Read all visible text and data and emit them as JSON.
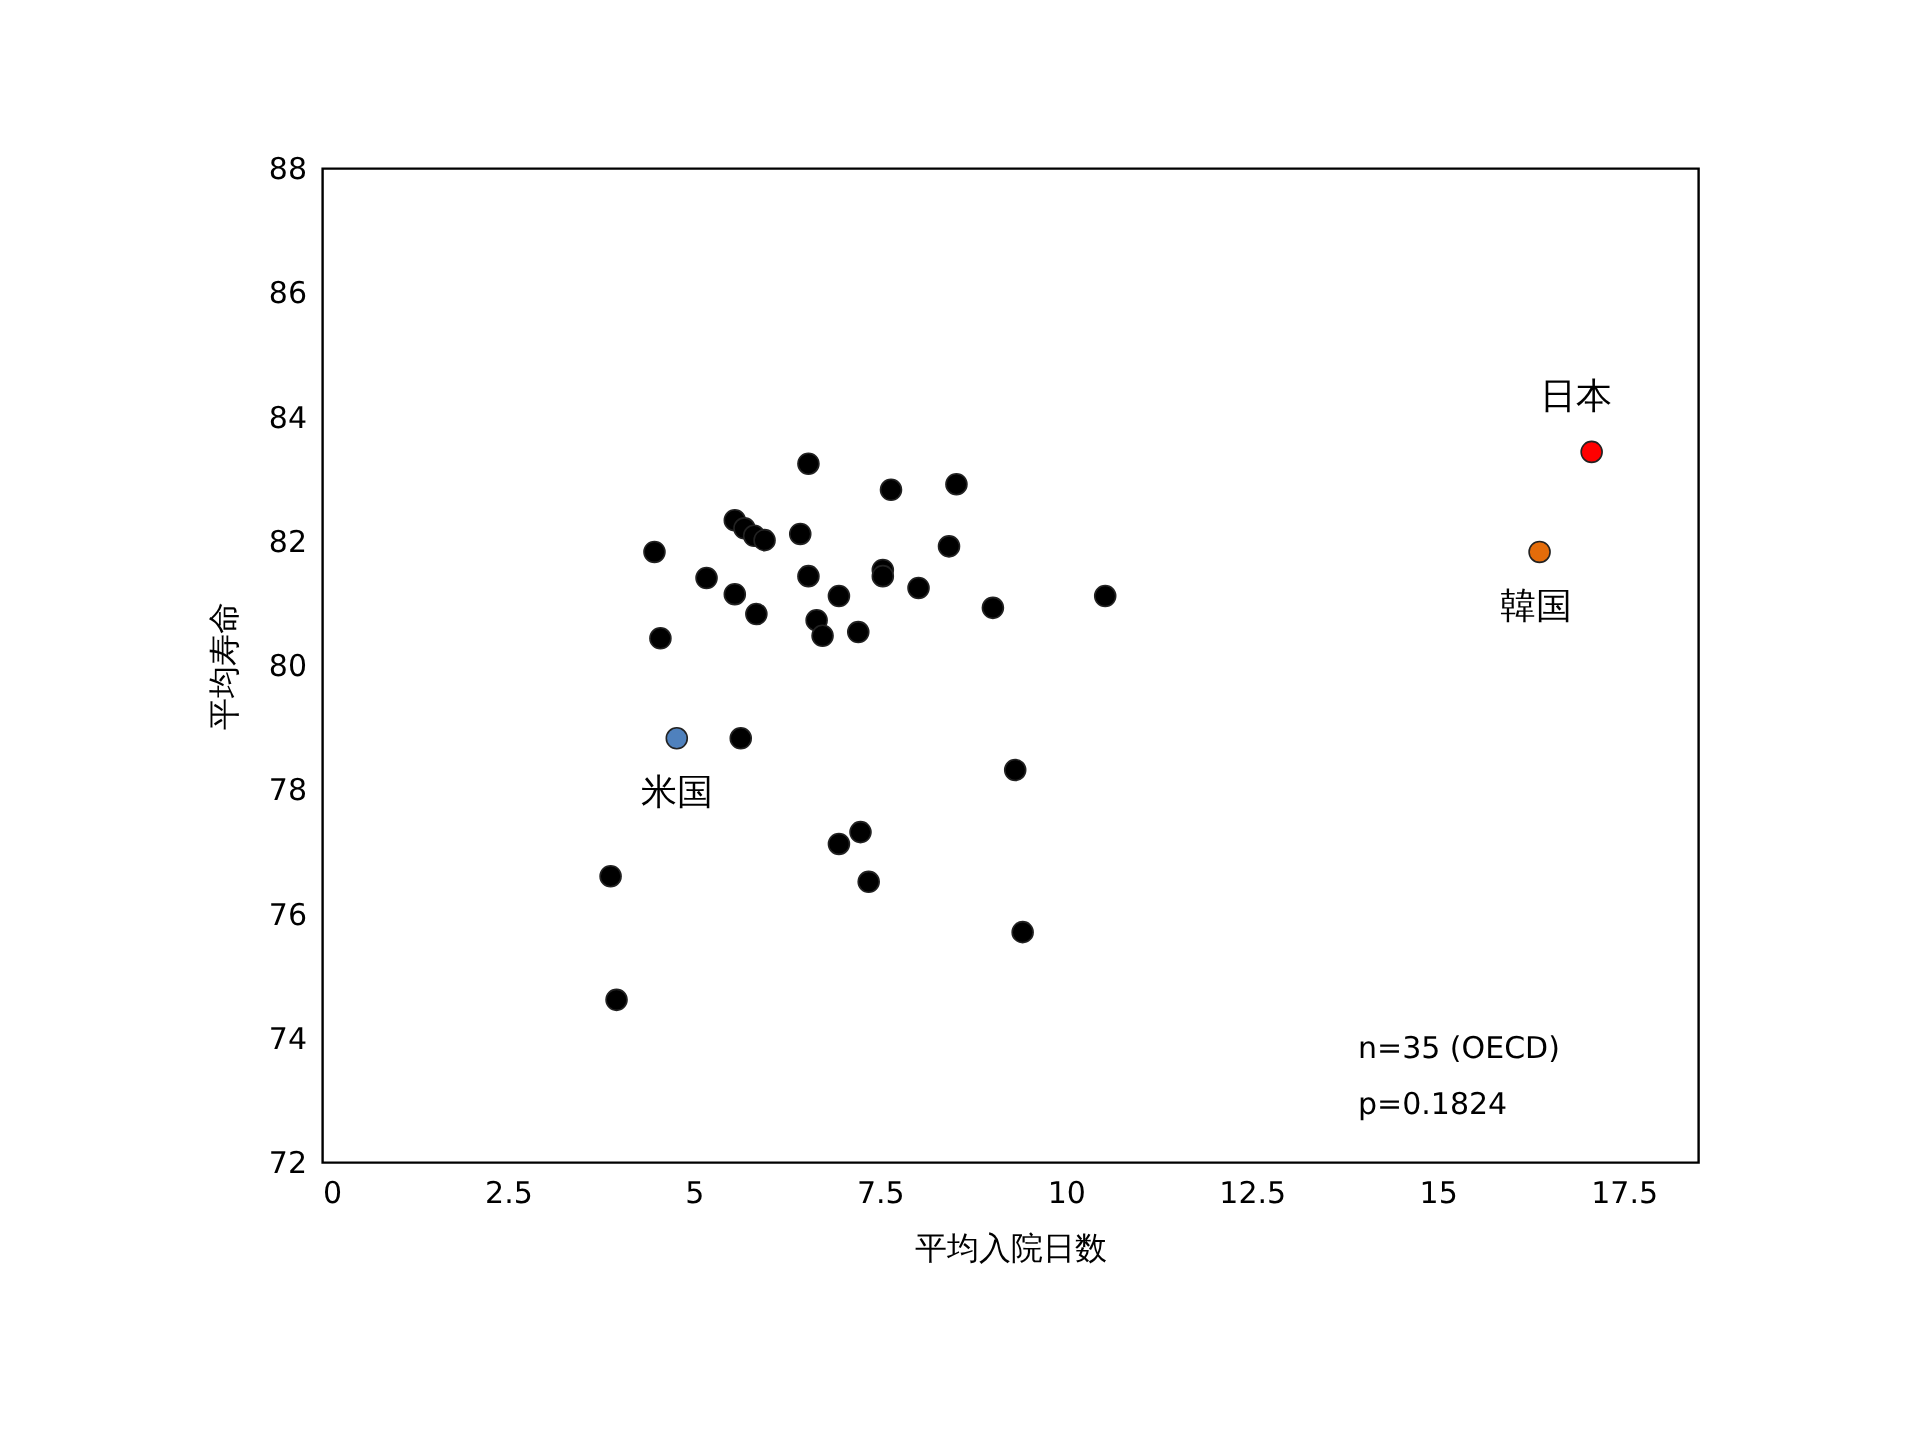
{
  "chart_data": {
    "type": "scatter",
    "xlabel": "平均入院日数",
    "ylabel": "平均寿命",
    "xlim": [
      0,
      18.5
    ],
    "xticks": [
      0,
      2.5,
      5,
      7.5,
      10,
      12.5,
      15,
      17.5
    ],
    "ylim": [
      72,
      88
    ],
    "yticks": [
      72,
      74,
      76,
      78,
      80,
      82,
      84,
      86,
      88
    ],
    "grid": false,
    "legend": false,
    "marker": "circle",
    "annotations": [
      "n=35 (OECD)",
      "p=0.1824"
    ],
    "series": [
      {
        "color": "#000000",
        "x": [
          4.47,
          4.55,
          5.17,
          5.55,
          5.68,
          5.81,
          5.95,
          5.55,
          5.84,
          6.43,
          6.54,
          6.54,
          6.65,
          6.73,
          6.95,
          7.21,
          7.54,
          7.54,
          7.65,
          8.02,
          8.43,
          8.53,
          9.02,
          10.53,
          5.63,
          3.88,
          3.96,
          6.95,
          7.24,
          7.35,
          9.32,
          9.42
        ],
        "values": [
          81.82,
          80.43,
          81.4,
          82.33,
          82.2,
          82.08,
          82.01,
          81.14,
          80.82,
          82.11,
          83.24,
          81.43,
          80.72,
          80.47,
          81.11,
          80.53,
          81.53,
          81.43,
          82.82,
          81.24,
          81.91,
          82.91,
          80.92,
          81.11,
          78.82,
          76.6,
          74.61,
          77.12,
          77.31,
          76.51,
          78.31,
          75.7
        ]
      },
      {
        "name": "米国",
        "color": "#4f81bd",
        "x": [
          4.77
        ],
        "values": [
          78.82
        ]
      },
      {
        "name": "日本",
        "color": "#ff0000",
        "x": [
          17.07
        ],
        "values": [
          83.43
        ]
      },
      {
        "name": "韓国",
        "color": "#e46c0a",
        "x": [
          16.37
        ],
        "values": [
          81.82
        ]
      }
    ]
  }
}
